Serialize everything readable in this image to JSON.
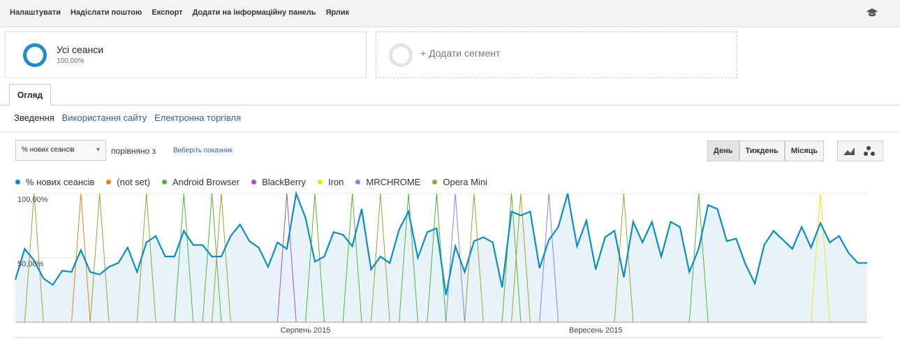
{
  "toolbar": {
    "items": [
      "Налаштувати",
      "Надіслати поштою",
      "Експорт",
      "Додати на інформаційну панель",
      "Ярлик"
    ]
  },
  "segments": [
    {
      "name": "Усі сеанси",
      "share": "100,00%"
    },
    {
      "name": "+ Додати сегмент"
    }
  ],
  "tab": "Огляд",
  "subnav": [
    "Зведення",
    "Використання сайту",
    "Електронна торгівля"
  ],
  "controls": {
    "metric": "% нових сеансів",
    "compare": "порівняно з",
    "pick": "Виберіть показник",
    "periods": [
      "День",
      "Тиждень",
      "Місяць"
    ]
  },
  "chart_data": {
    "type": "line",
    "categories": [
      null,
      null,
      null,
      null,
      null,
      null,
      null,
      null,
      null,
      null,
      null,
      null,
      null,
      null,
      null,
      null,
      null,
      null,
      null,
      null,
      null,
      null,
      null,
      null,
      null,
      null,
      null,
      null,
      null,
      null,
      null,
      "Серпень 2015",
      null,
      null,
      null,
      null,
      null,
      null,
      null,
      null,
      null,
      null,
      null,
      null,
      null,
      null,
      null,
      null,
      null,
      null,
      null,
      null,
      null,
      null,
      null,
      null,
      null,
      null,
      null,
      null,
      null,
      null,
      "Вересень 2015",
      null,
      null,
      null,
      null,
      null,
      null,
      null,
      null,
      null,
      null,
      null,
      null,
      null,
      null,
      null,
      null,
      null,
      null,
      null,
      null,
      null,
      null,
      null,
      null,
      null,
      null,
      null,
      null,
      null
    ],
    "ylim": [
      0,
      100
    ],
    "yticks": [
      {
        "value": 50,
        "label": "50,00%"
      },
      {
        "value": 100,
        "label": "100,00%"
      }
    ],
    "grid": true,
    "series": [
      {
        "name": "% нових сеансів",
        "color": "#058dc7",
        "area": true,
        "values": [
          33,
          57,
          48,
          34,
          29,
          40,
          39,
          56,
          39,
          37,
          43,
          46,
          58,
          39,
          62,
          67,
          51,
          51,
          71,
          60,
          60,
          51,
          51,
          67,
          76,
          63,
          58,
          43,
          62,
          57,
          100,
          81,
          47,
          51,
          70,
          68,
          59,
          88,
          41,
          51,
          46,
          72,
          86,
          50,
          70,
          73,
          21,
          59,
          39,
          63,
          66,
          62,
          27,
          86,
          83,
          86,
          42,
          64,
          74,
          100,
          59,
          79,
          41,
          66,
          71,
          35,
          78,
          62,
          78,
          51,
          78,
          74,
          39,
          57,
          91,
          88,
          63,
          65,
          45,
          30,
          60,
          71,
          64,
          57,
          74,
          58,
          77,
          62,
          67,
          54,
          46,
          46
        ]
      },
      {
        "name": "(not set)",
        "color": "#ed7e17",
        "values": [
          0,
          0,
          0,
          0,
          0,
          0,
          0,
          100,
          0,
          0,
          0,
          0,
          0,
          0,
          0,
          0,
          0,
          0,
          0,
          0,
          0,
          0,
          0,
          0,
          0,
          0,
          0,
          0,
          0,
          0,
          0,
          0,
          0,
          0,
          0,
          0,
          0,
          0,
          0,
          0,
          0,
          0,
          0,
          0,
          0,
          0,
          0,
          0,
          0,
          0,
          0,
          0,
          0,
          0,
          0,
          0,
          0,
          0,
          0,
          0,
          0,
          0,
          0,
          0,
          0,
          0,
          0,
          0,
          0,
          0,
          0,
          0,
          0,
          0,
          0,
          0,
          0,
          0,
          0,
          0,
          0,
          0,
          0,
          0,
          0,
          0,
          0,
          0,
          0,
          0,
          0,
          0
        ]
      },
      {
        "name": "Android Browser",
        "color": "#50b432",
        "values": [
          0,
          0,
          0,
          0,
          0,
          0,
          0,
          0,
          0,
          0,
          0,
          0,
          0,
          0,
          0,
          0,
          0,
          0,
          100,
          0,
          0,
          100,
          0,
          0,
          0,
          0,
          0,
          0,
          0,
          0,
          0,
          0,
          100,
          0,
          0,
          0,
          100,
          0,
          0,
          0,
          0,
          0,
          100,
          0,
          0,
          100,
          0,
          0,
          0,
          0,
          0,
          0,
          0,
          100,
          0,
          0,
          0,
          0,
          0,
          0,
          0,
          0,
          0,
          0,
          0,
          0,
          0,
          0,
          0,
          0,
          0,
          0,
          0,
          100,
          0,
          0,
          0,
          0,
          0,
          0,
          0,
          0,
          0,
          0,
          0,
          0,
          0,
          0,
          0,
          0,
          0,
          0
        ]
      },
      {
        "name": "BlackBerry",
        "color": "#af49c5",
        "values": [
          0,
          0,
          0,
          0,
          0,
          0,
          0,
          0,
          0,
          0,
          0,
          0,
          0,
          0,
          0,
          0,
          0,
          0,
          0,
          0,
          0,
          0,
          0,
          0,
          0,
          0,
          0,
          0,
          0,
          100,
          0,
          0,
          0,
          0,
          0,
          0,
          0,
          0,
          0,
          0,
          0,
          0,
          0,
          0,
          0,
          0,
          0,
          0,
          0,
          0,
          0,
          0,
          0,
          0,
          0,
          0,
          0,
          0,
          0,
          0,
          0,
          0,
          0,
          0,
          0,
          0,
          0,
          0,
          0,
          0,
          0,
          0,
          0,
          0,
          0,
          0,
          0,
          0,
          0,
          0,
          0,
          0,
          0,
          0,
          0,
          0,
          0,
          0,
          0,
          0,
          0,
          0
        ]
      },
      {
        "name": "Iron",
        "color": "#e8e800",
        "values": [
          0,
          0,
          0,
          0,
          0,
          0,
          0,
          0,
          0,
          0,
          0,
          0,
          0,
          0,
          0,
          0,
          0,
          0,
          0,
          0,
          0,
          0,
          0,
          0,
          0,
          0,
          0,
          0,
          0,
          0,
          0,
          0,
          0,
          0,
          0,
          0,
          0,
          0,
          0,
          0,
          0,
          0,
          0,
          0,
          0,
          0,
          0,
          0,
          0,
          0,
          0,
          0,
          0,
          0,
          0,
          0,
          0,
          0,
          0,
          0,
          0,
          0,
          0,
          0,
          0,
          0,
          0,
          0,
          0,
          0,
          0,
          0,
          0,
          0,
          0,
          0,
          0,
          0,
          0,
          0,
          0,
          0,
          0,
          0,
          0,
          0,
          100,
          0,
          0,
          0,
          0,
          0
        ]
      },
      {
        "name": "MRCHROME",
        "color": "#8080ff",
        "values": [
          0,
          0,
          0,
          0,
          0,
          0,
          0,
          0,
          0,
          0,
          0,
          0,
          0,
          0,
          0,
          0,
          0,
          0,
          0,
          0,
          0,
          0,
          0,
          0,
          0,
          0,
          0,
          0,
          0,
          0,
          0,
          0,
          0,
          0,
          0,
          0,
          0,
          0,
          0,
          0,
          0,
          0,
          0,
          0,
          0,
          0,
          0,
          100,
          0,
          0,
          0,
          0,
          0,
          0,
          0,
          0,
          0,
          100,
          0,
          0,
          0,
          0,
          0,
          0,
          0,
          0,
          0,
          0,
          0,
          0,
          0,
          0,
          0,
          0,
          0,
          0,
          0,
          0,
          0,
          0,
          0,
          0,
          0,
          0,
          0,
          0,
          0,
          0,
          0,
          0,
          0,
          0
        ]
      },
      {
        "name": "Opera Mini",
        "color": "#a0a030",
        "values": [
          0,
          0,
          100,
          0,
          0,
          0,
          0,
          0,
          0,
          100,
          0,
          0,
          0,
          0,
          100,
          0,
          0,
          0,
          0,
          0,
          0,
          0,
          100,
          0,
          0,
          0,
          0,
          0,
          0,
          0,
          0,
          0,
          0,
          0,
          0,
          0,
          0,
          0,
          0,
          100,
          0,
          0,
          0,
          0,
          0,
          0,
          0,
          0,
          0,
          100,
          0,
          0,
          0,
          0,
          100,
          0,
          0,
          0,
          0,
          0,
          0,
          0,
          0,
          0,
          0,
          100,
          0,
          0,
          0,
          0,
          0,
          0,
          0,
          0,
          0,
          0,
          0,
          0,
          0,
          0,
          0,
          0,
          0,
          0,
          0,
          0,
          0,
          0,
          0,
          0,
          0,
          0
        ]
      }
    ]
  }
}
